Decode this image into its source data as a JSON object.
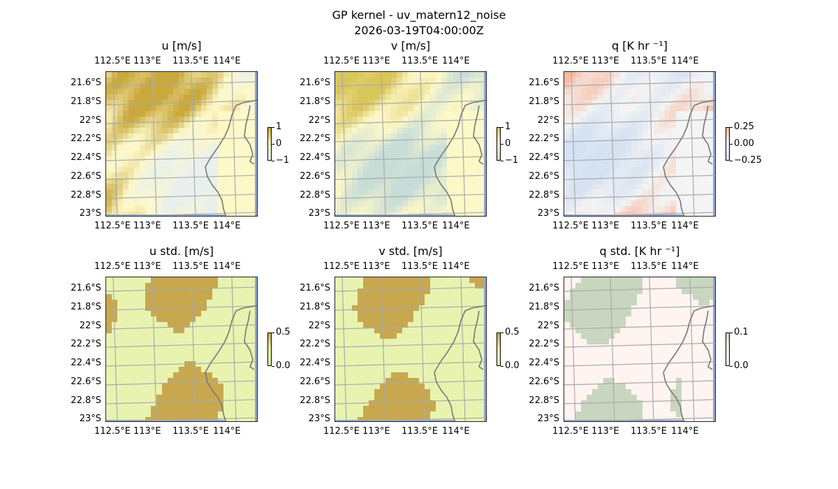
{
  "figure": {
    "title": "GP kernel - uv_matern12_noise",
    "subtitle": "2026-03-19T04:00:00Z"
  },
  "axes": {
    "lon_labels": [
      "112.5°E",
      "113°E",
      "113.5°E",
      "114°E"
    ],
    "lat_labels": [
      "21.6°S",
      "21.8°S",
      "22°S",
      "22.2°S",
      "22.4°S",
      "22.6°S",
      "22.8°S",
      "23°S"
    ]
  },
  "panels": [
    {
      "id": "u",
      "title": "u [m/s]",
      "cbar_ticks": [
        "1",
        "0",
        "−1"
      ],
      "low": "#e8f0ee",
      "mid": "#fdf8c8",
      "high": "#c9a93c",
      "variance": "mean"
    },
    {
      "id": "v",
      "title": "v [m/s]",
      "cbar_ticks": [
        "1",
        "0",
        "−1"
      ],
      "low": "#c6ddd8",
      "mid": "#fdf8c8",
      "high": "#d9c65a",
      "variance": "mean"
    },
    {
      "id": "q",
      "title": "q [K hr ⁻¹]",
      "cbar_ticks": [
        "0.25",
        "0.00",
        "−0.25"
      ],
      "low": "#d5e2f2",
      "mid": "#f4f4f4",
      "high": "#f7b9a1",
      "variance": "mean"
    },
    {
      "id": "u_std",
      "title": "u std. [m/s]",
      "cbar_ticks": [
        "0.5",
        "0.0"
      ],
      "low": "#e8f3b0",
      "mid": "#e8f3b0",
      "high": "#c8a84e",
      "variance": "std"
    },
    {
      "id": "v_std",
      "title": "v std. [m/s]",
      "cbar_ticks": [
        "0.5",
        "0.0"
      ],
      "low": "#e8f3b0",
      "mid": "#e8f3b0",
      "high": "#c8a84e",
      "variance": "std"
    },
    {
      "id": "q_std",
      "title": "q std. [K hr ⁻¹]",
      "cbar_ticks": [
        "0.1",
        "0.0"
      ],
      "low": "#fff4f0",
      "mid": "#fff4f0",
      "high": "#c9d6bf",
      "variance": "std"
    }
  ],
  "colors": {
    "grid": "#aaaaaa",
    "coast": "#777777",
    "ocean_edge": "#8fa8d8"
  }
}
